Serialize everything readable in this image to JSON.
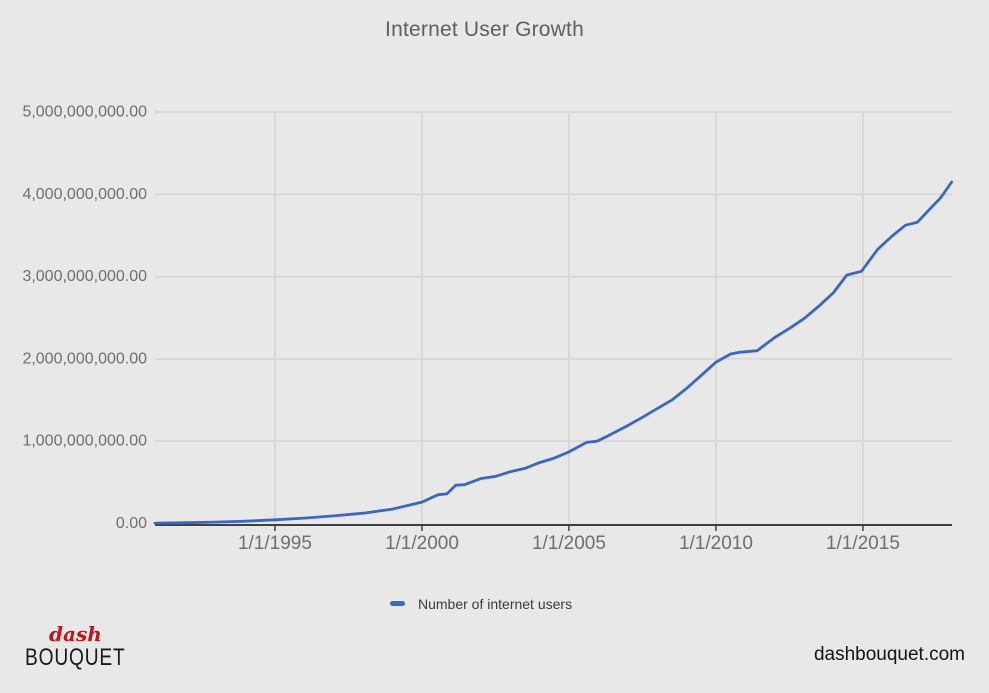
{
  "page": {
    "title": "Internet User Growth",
    "site_url": "dashbouquet.com",
    "logo": {
      "line1": "dash",
      "line2": "BOUQUET"
    }
  },
  "legend": {
    "label": "Number of internet users"
  },
  "colors": {
    "background": "#e8e8e8",
    "series_blue": "#3d65c5",
    "gridline": "#d4d4d4",
    "axis": "#404040",
    "tick_label": "#6f6f6f",
    "title_gray": "#5f5f5f",
    "logo_red": "#bd161d"
  },
  "chart_data": {
    "type": "line",
    "title": "Internet User Growth",
    "xlabel": "",
    "ylabel": "",
    "grid": true,
    "legend_position": "bottom",
    "x_range": [
      1990.92,
      2018.03
    ],
    "y_range": [
      0,
      5000000000
    ],
    "x_ticks": [
      {
        "label": "1/1/1995",
        "year": 1995
      },
      {
        "label": "1/1/2000",
        "year": 2000
      },
      {
        "label": "1/1/2005",
        "year": 2005
      },
      {
        "label": "1/1/2010",
        "year": 2010
      },
      {
        "label": "1/1/2015",
        "year": 2015
      }
    ],
    "y_ticks": [
      {
        "label": "0.00",
        "value": 0
      },
      {
        "label": "1,000,000,000.00",
        "value": 1000000000
      },
      {
        "label": "2,000,000,000.00",
        "value": 2000000000
      },
      {
        "label": "3,000,000,000.00",
        "value": 3000000000
      },
      {
        "label": "4,000,000,000.00",
        "value": 4000000000
      },
      {
        "label": "5,000,000,000.00",
        "value": 5000000000
      }
    ],
    "series": [
      {
        "name": "Number of internet users",
        "color": "#3d65c5",
        "points": [
          [
            1990.92,
            5000000
          ],
          [
            1992.0,
            10000000
          ],
          [
            1993.0,
            17000000
          ],
          [
            1994.0,
            28000000
          ],
          [
            1995.0,
            45000000
          ],
          [
            1996.0,
            66000000
          ],
          [
            1997.0,
            92000000
          ],
          [
            1998.0,
            125000000
          ],
          [
            1999.0,
            175000000
          ],
          [
            2000.0,
            260000000
          ],
          [
            2000.55,
            350000000
          ],
          [
            2000.85,
            360000000
          ],
          [
            2001.15,
            465000000
          ],
          [
            2001.45,
            472000000
          ],
          [
            2002.0,
            545000000
          ],
          [
            2002.5,
            572000000
          ],
          [
            2003.0,
            628000000
          ],
          [
            2003.5,
            670000000
          ],
          [
            2004.0,
            740000000
          ],
          [
            2004.5,
            795000000
          ],
          [
            2005.0,
            870000000
          ],
          [
            2005.6,
            985000000
          ],
          [
            2005.95,
            1000000000
          ],
          [
            2006.3,
            1060000000
          ],
          [
            2007.0,
            1190000000
          ],
          [
            2007.5,
            1290000000
          ],
          [
            2008.0,
            1395000000
          ],
          [
            2008.5,
            1500000000
          ],
          [
            2009.0,
            1640000000
          ],
          [
            2009.5,
            1800000000
          ],
          [
            2010.0,
            1960000000
          ],
          [
            2010.5,
            2060000000
          ],
          [
            2010.8,
            2080000000
          ],
          [
            2011.4,
            2100000000
          ],
          [
            2012.0,
            2260000000
          ],
          [
            2012.5,
            2370000000
          ],
          [
            2013.0,
            2490000000
          ],
          [
            2013.5,
            2640000000
          ],
          [
            2014.0,
            2805000000
          ],
          [
            2014.45,
            3020000000
          ],
          [
            2014.95,
            3065000000
          ],
          [
            2015.5,
            3330000000
          ],
          [
            2016.0,
            3495000000
          ],
          [
            2016.45,
            3625000000
          ],
          [
            2016.85,
            3660000000
          ],
          [
            2017.3,
            3830000000
          ],
          [
            2017.65,
            3960000000
          ],
          [
            2018.02,
            4150000000
          ]
        ]
      }
    ]
  }
}
